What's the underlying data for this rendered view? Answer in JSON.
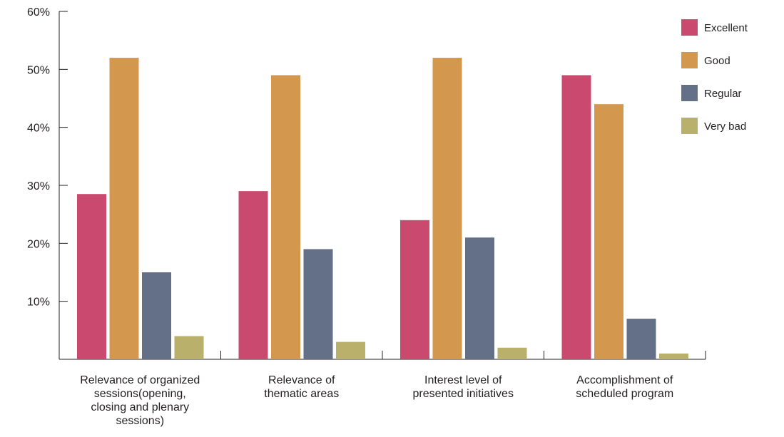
{
  "chart_data": {
    "type": "bar",
    "title": "",
    "xlabel": "",
    "ylabel": "",
    "ylim": [
      0,
      60
    ],
    "yticks": [
      {
        "value": 10,
        "label": "10%"
      },
      {
        "value": 20,
        "label": "20%"
      },
      {
        "value": 30,
        "label": "30%"
      },
      {
        "value": 40,
        "label": "40%"
      },
      {
        "value": 50,
        "label": "50%"
      },
      {
        "value": 60,
        "label": "60%"
      }
    ],
    "categories": [
      "Relevance of organized sessions(opening, closing and plenary sessions)",
      "Relevance of thematic areas",
      "Interest level of presented initiatives",
      "Accomplishment of scheduled program"
    ],
    "category_label_lines": [
      [
        "Relevance of organized",
        "sessions(opening,",
        "closing and plenary",
        "sessions)"
      ],
      [
        "Relevance of",
        "thematic areas"
      ],
      [
        "Interest level of",
        "presented initiatives"
      ],
      [
        "Accomplishment of",
        "scheduled program"
      ]
    ],
    "series": [
      {
        "name": "Excellent",
        "color": "#c94a6e",
        "values": [
          28.5,
          29,
          24,
          49
        ]
      },
      {
        "name": "Good",
        "color": "#d3984e",
        "values": [
          52,
          49,
          52,
          44
        ]
      },
      {
        "name": "Regular",
        "color": "#637088",
        "values": [
          15,
          19,
          21,
          7
        ]
      },
      {
        "name": "Very bad",
        "color": "#b8b06b",
        "values": [
          4,
          3,
          2,
          1
        ]
      }
    ],
    "grid": false,
    "legend_position": "top-right"
  }
}
